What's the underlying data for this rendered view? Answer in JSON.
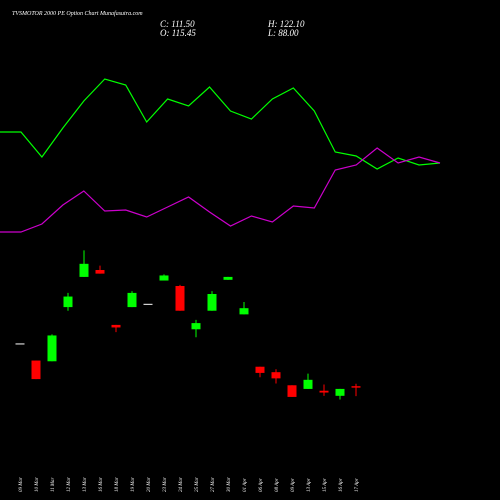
{
  "chart_data": {
    "type": "candlestick",
    "title": "TVSMOTOR 2000 PE Option Chart Munafasutra.com",
    "summary": {
      "close": {
        "value": 111.5,
        "label": "C: 111.50"
      },
      "open": {
        "value": 115.45,
        "label": "O: 115.45"
      },
      "high": {
        "value": 122.1,
        "label": "H: 122.10"
      },
      "low": {
        "value": 88,
        "label": "L: 88.00"
      }
    },
    "categories": [
      "09 Mar",
      "10 Mar",
      "11 Mar",
      "12 Mar",
      "13 Mar",
      "16 Mar",
      "18 Mar",
      "19 Mar",
      "20 Mar",
      "23 Mar",
      "24 Mar",
      "25 Mar",
      "27 Mar",
      "30 Mar",
      "01 Apr",
      "06 Apr",
      "08 Apr",
      "09 Apr",
      "13 Apr",
      "15 Apr",
      "16 Apr",
      "17 Apr"
    ],
    "open": [
      233,
      186,
      184,
      333,
      416,
      435,
      284,
      333,
      342,
      406,
      391,
      272,
      323,
      408,
      313,
      169,
      154,
      118,
      108,
      103,
      89,
      115.45
    ],
    "high": [
      233,
      186,
      258,
      372,
      489,
      447,
      284,
      377,
      342,
      423,
      394,
      298,
      377,
      416,
      347,
      169,
      162,
      118,
      150,
      120,
      108,
      122.1
    ],
    "low": [
      233,
      135,
      184,
      323,
      416,
      425,
      264,
      333,
      342,
      406,
      323,
      250,
      323,
      408,
      313,
      140,
      123,
      86,
      108,
      89,
      79,
      88
    ],
    "close": [
      233,
      135,
      255,
      362,
      452,
      425,
      277,
      372,
      342,
      420,
      323,
      289,
      369,
      416,
      330,
      152,
      137,
      86,
      133,
      98,
      108,
      111.5
    ],
    "up_color": "#00ff00",
    "down_color": "#ff0000",
    "flat_color": "#ffffff",
    "ylim": [
      -5,
      490
    ],
    "lines": [
      {
        "color": "#00ff00",
        "values": [
          118,
          118,
          93,
          122,
          149,
          171,
          165,
          128,
          151,
          144,
          163,
          139,
          131,
          151,
          162,
          139,
          98,
          94,
          81,
          92,
          85,
          87
        ]
      },
      {
        "color": "#cc00cc",
        "values": [
          18,
          18,
          26,
          45,
          59,
          39,
          40,
          33,
          43,
          53,
          38,
          24,
          34,
          28,
          44,
          42,
          80,
          85,
          102,
          87,
          93,
          87
        ]
      }
    ],
    "lines_ylim": [
      0,
      200
    ]
  }
}
